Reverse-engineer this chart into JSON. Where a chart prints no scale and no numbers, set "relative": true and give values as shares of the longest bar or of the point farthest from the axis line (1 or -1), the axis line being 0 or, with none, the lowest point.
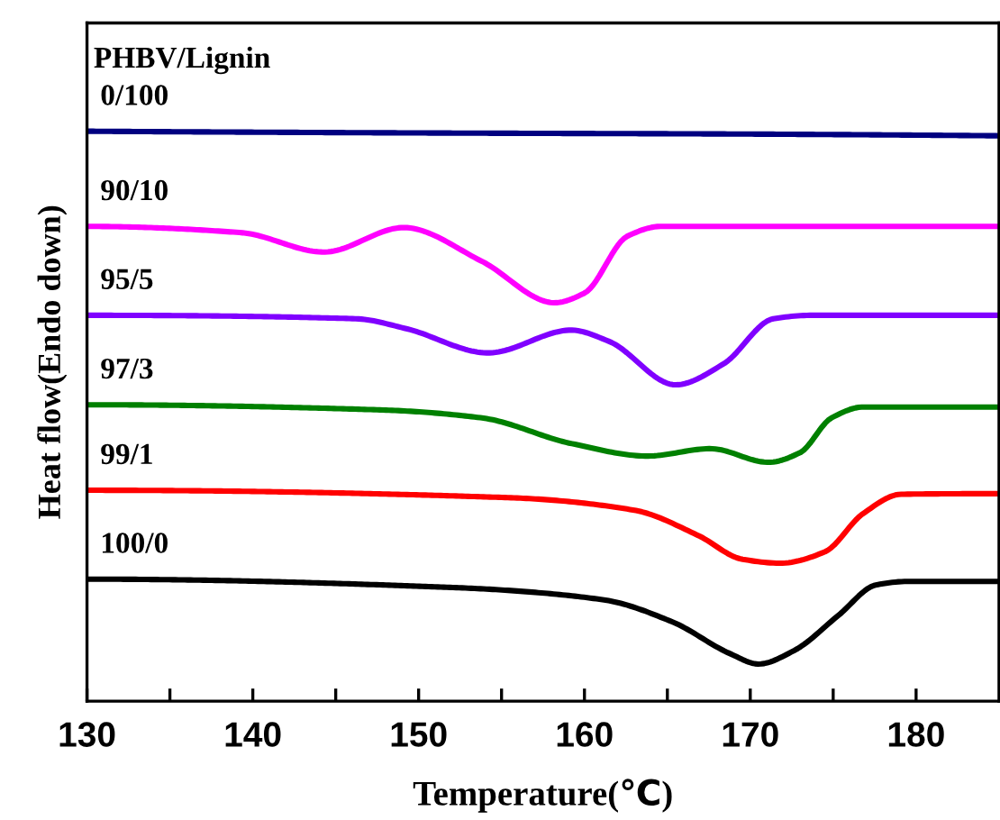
{
  "chart_data": {
    "type": "line",
    "relative": true,
    "xlabel": "Temperature(℃)",
    "ylabel": "Heat flow(Endo down)",
    "legend_title": "PHBV/Lignin",
    "legend": false,
    "grid": false,
    "tick_labels": "x",
    "line_style": "solid",
    "marker": "none",
    "xlim": [
      130,
      185
    ],
    "xticks": [
      130,
      {
        "value": 135,
        "label": null
      },
      140,
      {
        "value": 145,
        "label": null
      },
      150,
      {
        "value": 155,
        "label": null
      },
      160,
      {
        "value": 165,
        "label": null
      },
      170,
      {
        "value": 175,
        "label": null
      },
      180
    ],
    "series": [
      {
        "name": "0/100",
        "color": "#000080",
        "x": [
          130,
          150,
          170,
          185
        ],
        "values": [
          1.0,
          0.997,
          0.995,
          0.992
        ]
      },
      {
        "name": "90/10",
        "color": "#ff00ff",
        "x": [
          130,
          139.3,
          144.3,
          149.1,
          153.8,
          158.2,
          160.0,
          162.6,
          164.6,
          185
        ],
        "values": [
          0.833,
          0.822,
          0.788,
          0.831,
          0.772,
          0.699,
          0.716,
          0.816,
          0.833,
          0.833
        ]
      },
      {
        "name": "95/5",
        "color": "#8000ff",
        "x": [
          130,
          146.2,
          149.2,
          154.2,
          159.2,
          161.5,
          165.5,
          168.4,
          171.4,
          173.7,
          185
        ],
        "values": [
          0.677,
          0.671,
          0.654,
          0.611,
          0.651,
          0.631,
          0.555,
          0.592,
          0.671,
          0.677,
          0.677
        ]
      },
      {
        "name": "97/3",
        "color": "#008000",
        "x": [
          130,
          147.7,
          153.8,
          159.2,
          163.8,
          167.6,
          171.1,
          173.0,
          174.9,
          176.8,
          185
        ],
        "values": [
          0.52,
          0.511,
          0.497,
          0.452,
          0.43,
          0.443,
          0.419,
          0.436,
          0.497,
          0.516,
          0.516
        ]
      },
      {
        "name": "99/1",
        "color": "#ff0000",
        "x": [
          130,
          155.4,
          163.0,
          166.9,
          169.5,
          171.8,
          174.5,
          176.8,
          179.1,
          185
        ],
        "values": [
          0.37,
          0.357,
          0.335,
          0.29,
          0.249,
          0.242,
          0.262,
          0.329,
          0.363,
          0.364
        ]
      },
      {
        "name": "100/0",
        "color": "#000000",
        "x": [
          130,
          151.5,
          161.1,
          165.3,
          168.8,
          170.5,
          172.6,
          175.3,
          177.6,
          179.5,
          185
        ],
        "values": [
          0.214,
          0.2,
          0.178,
          0.139,
          0.083,
          0.065,
          0.088,
          0.15,
          0.204,
          0.21,
          0.21
        ]
      }
    ]
  }
}
